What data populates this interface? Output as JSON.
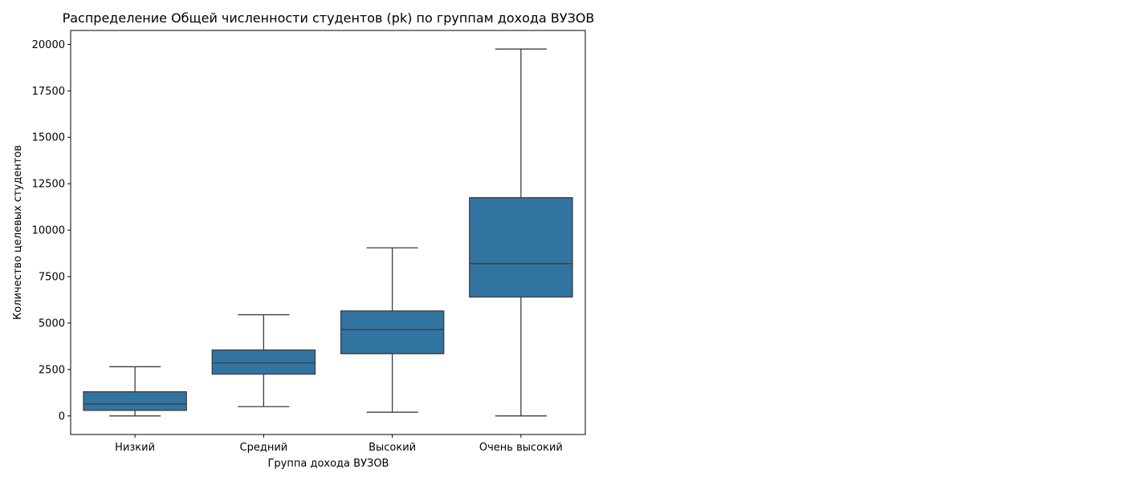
{
  "chart_data": {
    "type": "box",
    "title": "Распределение Общей численности студентов (pk) по группам дохода ВУЗОВ",
    "xlabel": "Группа дохода ВУЗОВ",
    "ylabel": "Количество целевых студентов",
    "categories": [
      "Низкий",
      "Средний",
      "Высокий",
      "Очень высокий"
    ],
    "boxes": [
      {
        "whisker_low": 0,
        "q1": 300,
        "median": 650,
        "q3": 1300,
        "whisker_high": 2650
      },
      {
        "whisker_low": 500,
        "q1": 2250,
        "median": 2850,
        "q3": 3550,
        "whisker_high": 5450
      },
      {
        "whisker_low": 200,
        "q1": 3350,
        "median": 4650,
        "q3": 5650,
        "whisker_high": 9050
      },
      {
        "whisker_low": 0,
        "q1": 6400,
        "median": 8200,
        "q3": 11750,
        "whisker_high": 19750
      }
    ],
    "ylim": [
      -1000,
      20750
    ],
    "yticks": [
      0,
      2500,
      5000,
      7500,
      10000,
      12500,
      15000,
      17500,
      20000
    ],
    "ytick_labels": [
      "0",
      "2500",
      "5000",
      "7500",
      "10000",
      "12500",
      "15000",
      "17500",
      "20000"
    ],
    "grid": false,
    "legend": "none",
    "box_color": "#3274a1",
    "line_color": "#3d3d3d"
  }
}
